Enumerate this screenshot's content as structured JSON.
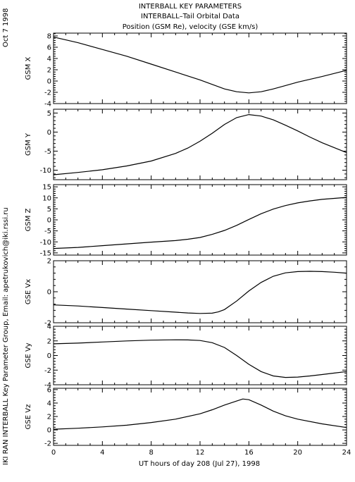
{
  "header": {
    "line1": "INTERBALL KEY PARAMETERS",
    "line2": "INTERBALL–Tail Orbital Data",
    "line3": "Position (GSM Re), velocity (GSE km/s)"
  },
  "side_date": "Oct  7 1998",
  "side_credit": "IKI RAN INTERBALL Key Parameter Group, Email: apetrukovich@iki.rssi.ru",
  "colors": {
    "axes": "#000000",
    "line": "#000000",
    "background": "#ffffff"
  },
  "chart_data": {
    "type": "line",
    "title": "Position (GSM Re), velocity (GSE km/s)",
    "xlabel": "UT hours of day 208 (Jul 27), 1998",
    "xlim": [
      0,
      24
    ],
    "xticks": [
      0,
      4,
      8,
      12,
      16,
      20,
      24
    ],
    "xtick_labels": [
      "0",
      "4",
      "8",
      "12",
      "16",
      "20",
      "24"
    ],
    "panels": [
      {
        "ylabel": "GSM X",
        "ylim": [
          -4,
          8.5
        ],
        "yticks": [
          -4,
          -2,
          0,
          2,
          4,
          6,
          8
        ],
        "ytick_labels": [
          "-4",
          "-2",
          "0",
          "2",
          "4",
          "6",
          "8"
        ],
        "x": [
          0,
          2,
          4,
          6,
          8,
          10,
          12,
          13,
          14,
          15,
          16,
          17,
          18,
          19,
          20,
          22,
          24
        ],
        "y": [
          7.8,
          6.8,
          5.6,
          4.4,
          3.0,
          1.6,
          0.2,
          -0.6,
          -1.4,
          -1.9,
          -2.1,
          -1.9,
          -1.4,
          -0.8,
          -0.2,
          0.8,
          1.9
        ]
      },
      {
        "ylabel": "GSM Y",
        "ylim": [
          -12.5,
          6
        ],
        "yticks": [
          -10,
          -5,
          0,
          5
        ],
        "ytick_labels": [
          "-10",
          "-5",
          "0",
          "5"
        ],
        "x": [
          0,
          2,
          4,
          6,
          8,
          10,
          11,
          12,
          13,
          14,
          15,
          16,
          17,
          18,
          19,
          20,
          21,
          22,
          24
        ],
        "y": [
          -11.2,
          -10.6,
          -9.9,
          -8.9,
          -7.6,
          -5.6,
          -4.2,
          -2.4,
          -0.3,
          2.0,
          3.8,
          4.6,
          4.2,
          3.2,
          1.8,
          0.3,
          -1.3,
          -2.8,
          -5.4
        ]
      },
      {
        "ylabel": "GSM Z",
        "ylim": [
          -16,
          16
        ],
        "yticks": [
          -15,
          -10,
          -5,
          0,
          5,
          10,
          15
        ],
        "ytick_labels": [
          "-15",
          "-10",
          "-5",
          "0",
          "5",
          "10",
          "15"
        ],
        "x": [
          0,
          2,
          4,
          6,
          8,
          10,
          11,
          12,
          13,
          14,
          15,
          16,
          17,
          18,
          19,
          20,
          21,
          22,
          24
        ],
        "y": [
          -13.0,
          -12.5,
          -11.7,
          -10.9,
          -10.1,
          -9.4,
          -8.8,
          -8.0,
          -6.6,
          -4.8,
          -2.5,
          0.2,
          2.8,
          4.9,
          6.5,
          7.7,
          8.6,
          9.3,
          10.2
        ]
      },
      {
        "ylabel": "GSE Vx",
        "ylim": [
          -2,
          2
        ],
        "yticks": [
          -2,
          0,
          2
        ],
        "ytick_labels": [
          "-2",
          "0",
          "2"
        ],
        "x": [
          0,
          2,
          4,
          6,
          8,
          10,
          11,
          12,
          13,
          13.5,
          14,
          15,
          16,
          17,
          18,
          19,
          20,
          21,
          22,
          23,
          24
        ],
        "y": [
          -0.85,
          -0.92,
          -1.02,
          -1.12,
          -1.22,
          -1.32,
          -1.37,
          -1.4,
          -1.38,
          -1.3,
          -1.15,
          -0.6,
          0.05,
          0.6,
          1.0,
          1.22,
          1.3,
          1.32,
          1.3,
          1.26,
          1.2
        ]
      },
      {
        "ylabel": "GSE Vy",
        "ylim": [
          -4,
          4
        ],
        "yticks": [
          -4,
          -2,
          0,
          2,
          4
        ],
        "ytick_labels": [
          "-4",
          "-2",
          "0",
          "2",
          "4"
        ],
        "x": [
          0,
          2,
          4,
          6,
          8,
          10,
          11,
          12,
          13,
          14,
          15,
          16,
          17,
          18,
          19,
          20,
          21,
          22,
          23,
          24
        ],
        "y": [
          1.6,
          1.7,
          1.85,
          2.0,
          2.1,
          2.15,
          2.13,
          2.05,
          1.75,
          1.1,
          0.0,
          -1.2,
          -2.2,
          -2.8,
          -3.0,
          -2.95,
          -2.8,
          -2.6,
          -2.4,
          -2.2
        ]
      },
      {
        "ylabel": "GSE Vz",
        "ylim": [
          -2.3,
          6.2
        ],
        "yticks": [
          -2,
          0,
          2,
          4,
          6
        ],
        "ytick_labels": [
          "-2",
          "0",
          "2",
          "4",
          "6"
        ],
        "x": [
          0,
          2,
          4,
          6,
          8,
          10,
          12,
          13,
          14,
          15,
          15.5,
          16,
          17,
          18,
          19,
          20,
          22,
          24
        ],
        "y": [
          0.1,
          0.25,
          0.45,
          0.7,
          1.1,
          1.6,
          2.4,
          3.0,
          3.7,
          4.3,
          4.6,
          4.5,
          3.7,
          2.8,
          2.1,
          1.6,
          0.9,
          0.35
        ]
      }
    ]
  }
}
